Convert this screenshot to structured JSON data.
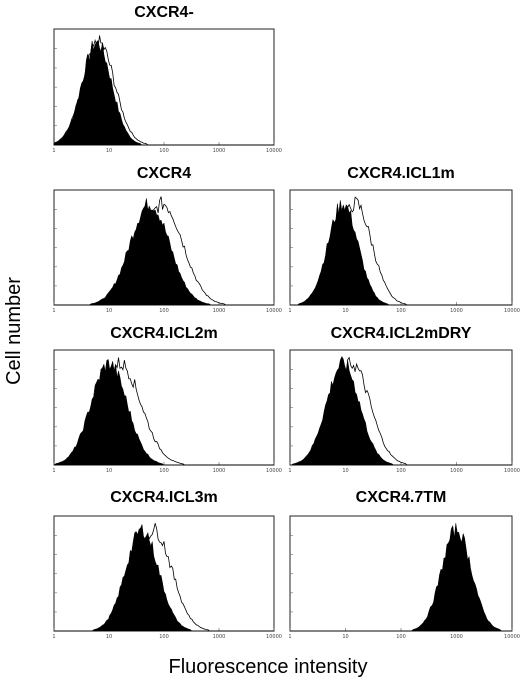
{
  "figure": {
    "ylabel": "Cell number",
    "xlabel": "Fluorescence intensity"
  },
  "chart_data": [
    {
      "type": "area",
      "title": "CXCR4-",
      "xscale": "log",
      "xlim": [
        1,
        10000
      ],
      "x_ticks": [
        1,
        10,
        100,
        1000,
        10000
      ],
      "series": [
        {
          "style": "filled-black",
          "peak_x": 6,
          "width": 0.27
        },
        {
          "style": "outline",
          "peak_x": 6.5,
          "width": 0.29
        }
      ]
    },
    {
      "type": "area",
      "title": "CXCR4",
      "xscale": "log",
      "xlim": [
        1,
        10000
      ],
      "x_ticks": [
        1,
        10,
        100,
        1000,
        10000
      ],
      "series": [
        {
          "style": "filled-black",
          "peak_x": 55,
          "width": 0.36
        },
        {
          "style": "outline",
          "peak_x": 95,
          "width": 0.37
        }
      ]
    },
    {
      "type": "area",
      "title": "CXCR4.ICL1m",
      "xscale": "log",
      "xlim": [
        1,
        10000
      ],
      "x_ticks": [
        1,
        10,
        100,
        1000,
        10000
      ],
      "series": [
        {
          "style": "filled-black",
          "peak_x": 9,
          "width": 0.27
        },
        {
          "style": "outline",
          "peak_x": 15,
          "width": 0.3
        }
      ]
    },
    {
      "type": "area",
      "title": "CXCR4.ICL2m",
      "xscale": "log",
      "xlim": [
        1,
        10000
      ],
      "x_ticks": [
        1,
        10,
        100,
        1000,
        10000
      ],
      "series": [
        {
          "style": "filled-black",
          "peak_x": 10,
          "width": 0.33
        },
        {
          "style": "outline",
          "peak_x": 16,
          "width": 0.38
        }
      ]
    },
    {
      "type": "area",
      "title": "CXCR4.ICL2mDRY",
      "xscale": "log",
      "xlim": [
        1,
        10000
      ],
      "x_ticks": [
        1,
        10,
        100,
        1000,
        10000
      ],
      "series": [
        {
          "style": "filled-black",
          "peak_x": 9,
          "width": 0.3
        },
        {
          "style": "outline",
          "peak_x": 13,
          "width": 0.33
        }
      ]
    },
    {
      "type": "area",
      "title": "CXCR4.ICL3m",
      "xscale": "log",
      "xlim": [
        1,
        10000
      ],
      "x_ticks": [
        1,
        10,
        100,
        1000,
        10000
      ],
      "series": [
        {
          "style": "filled-black",
          "peak_x": 40,
          "width": 0.3
        },
        {
          "style": "outline",
          "peak_x": 65,
          "width": 0.33
        }
      ]
    },
    {
      "type": "area",
      "title": "CXCR4.7TM",
      "xscale": "log",
      "xlim": [
        1,
        10000
      ],
      "x_ticks": [
        1,
        10,
        100,
        1000,
        10000
      ],
      "series": [
        {
          "style": "filled-black",
          "peak_x": 1000,
          "width": 0.27
        }
      ]
    }
  ]
}
